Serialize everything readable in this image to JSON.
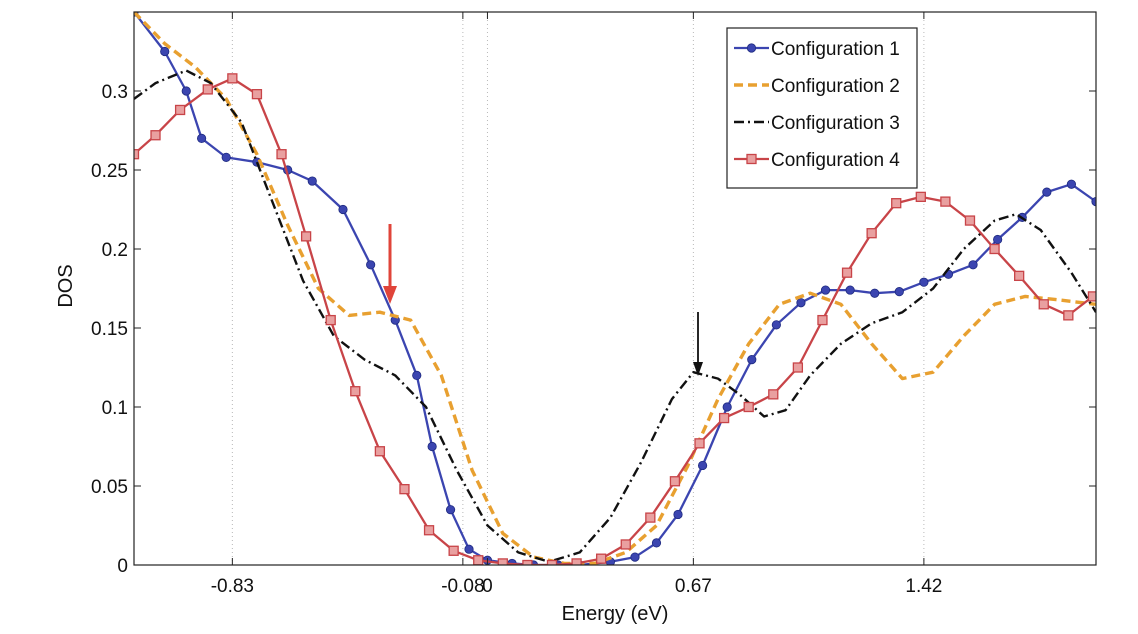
{
  "chart_data": {
    "type": "line",
    "xlabel": "Energy (eV)",
    "ylabel": "DOS",
    "xlim": [
      -1.15,
      1.98
    ],
    "ylim": [
      0,
      0.35
    ],
    "xticks": [
      {
        "value": -0.83,
        "label": "-0.83"
      },
      {
        "value": -0.08,
        "label": "-0.08"
      },
      {
        "value": 0,
        "label": "0"
      },
      {
        "value": 0.67,
        "label": "0.67"
      },
      {
        "value": 1.42,
        "label": "1.42"
      }
    ],
    "yticks": [
      {
        "value": 0,
        "label": "0"
      },
      {
        "value": 0.05,
        "label": "0.05"
      },
      {
        "value": 0.1,
        "label": "0.1"
      },
      {
        "value": 0.15,
        "label": "0.15"
      },
      {
        "value": 0.2,
        "label": "0.2"
      },
      {
        "value": 0.25,
        "label": "0.25"
      },
      {
        "value": 0.3,
        "label": "0.3"
      }
    ],
    "reference_lines_x": [
      -0.83,
      -0.08,
      0,
      0.67,
      1.42
    ],
    "legend_position": "top-right",
    "series": [
      {
        "name": "Configuration 1",
        "color": "#3b45b0",
        "style": "solid-dot",
        "points": [
          [
            -1.15,
            0.35
          ],
          [
            -1.05,
            0.325
          ],
          [
            -0.98,
            0.3
          ],
          [
            -0.93,
            0.27
          ],
          [
            -0.85,
            0.258
          ],
          [
            -0.75,
            0.255
          ],
          [
            -0.65,
            0.25
          ],
          [
            -0.57,
            0.243
          ],
          [
            -0.47,
            0.225
          ],
          [
            -0.38,
            0.19
          ],
          [
            -0.3,
            0.155
          ],
          [
            -0.23,
            0.12
          ],
          [
            -0.18,
            0.075
          ],
          [
            -0.12,
            0.035
          ],
          [
            -0.06,
            0.01
          ],
          [
            0.0,
            0.003
          ],
          [
            0.08,
            0.001
          ],
          [
            0.15,
            0.0
          ],
          [
            0.23,
            0.0
          ],
          [
            0.3,
            0.0
          ],
          [
            0.4,
            0.002
          ],
          [
            0.48,
            0.005
          ],
          [
            0.55,
            0.014
          ],
          [
            0.62,
            0.032
          ],
          [
            0.7,
            0.063
          ],
          [
            0.78,
            0.1
          ],
          [
            0.86,
            0.13
          ],
          [
            0.94,
            0.152
          ],
          [
            1.02,
            0.166
          ],
          [
            1.1,
            0.174
          ],
          [
            1.18,
            0.174
          ],
          [
            1.26,
            0.172
          ],
          [
            1.34,
            0.173
          ],
          [
            1.42,
            0.179
          ],
          [
            1.5,
            0.184
          ],
          [
            1.58,
            0.19
          ],
          [
            1.66,
            0.206
          ],
          [
            1.74,
            0.22
          ],
          [
            1.82,
            0.236
          ],
          [
            1.9,
            0.241
          ],
          [
            1.98,
            0.23
          ]
        ]
      },
      {
        "name": "Configuration 2",
        "color": "#e8a030",
        "style": "dashed",
        "points": [
          [
            -1.15,
            0.35
          ],
          [
            -1.05,
            0.33
          ],
          [
            -0.95,
            0.315
          ],
          [
            -0.85,
            0.295
          ],
          [
            -0.75,
            0.26
          ],
          [
            -0.65,
            0.215
          ],
          [
            -0.55,
            0.175
          ],
          [
            -0.45,
            0.158
          ],
          [
            -0.35,
            0.16
          ],
          [
            -0.25,
            0.155
          ],
          [
            -0.15,
            0.12
          ],
          [
            -0.05,
            0.06
          ],
          [
            0.05,
            0.02
          ],
          [
            0.15,
            0.005
          ],
          [
            0.25,
            0.001
          ],
          [
            0.35,
            0.001
          ],
          [
            0.45,
            0.008
          ],
          [
            0.55,
            0.025
          ],
          [
            0.65,
            0.062
          ],
          [
            0.75,
            0.105
          ],
          [
            0.85,
            0.14
          ],
          [
            0.95,
            0.165
          ],
          [
            1.05,
            0.172
          ],
          [
            1.15,
            0.165
          ],
          [
            1.25,
            0.14
          ],
          [
            1.35,
            0.118
          ],
          [
            1.45,
            0.122
          ],
          [
            1.55,
            0.145
          ],
          [
            1.65,
            0.165
          ],
          [
            1.75,
            0.17
          ],
          [
            1.85,
            0.168
          ],
          [
            1.98,
            0.165
          ]
        ]
      },
      {
        "name": "Configuration 3",
        "color": "#111111",
        "style": "dashdot",
        "points": [
          [
            -1.15,
            0.295
          ],
          [
            -1.08,
            0.305
          ],
          [
            -0.98,
            0.313
          ],
          [
            -0.9,
            0.305
          ],
          [
            -0.8,
            0.28
          ],
          [
            -0.7,
            0.23
          ],
          [
            -0.6,
            0.18
          ],
          [
            -0.5,
            0.145
          ],
          [
            -0.4,
            0.13
          ],
          [
            -0.3,
            0.12
          ],
          [
            -0.2,
            0.1
          ],
          [
            -0.1,
            0.06
          ],
          [
            0.0,
            0.025
          ],
          [
            0.1,
            0.008
          ],
          [
            0.2,
            0.002
          ],
          [
            0.3,
            0.008
          ],
          [
            0.4,
            0.03
          ],
          [
            0.5,
            0.065
          ],
          [
            0.6,
            0.105
          ],
          [
            0.67,
            0.122
          ],
          [
            0.75,
            0.118
          ],
          [
            0.82,
            0.108
          ],
          [
            0.9,
            0.094
          ],
          [
            0.97,
            0.098
          ],
          [
            1.05,
            0.12
          ],
          [
            1.15,
            0.14
          ],
          [
            1.25,
            0.153
          ],
          [
            1.35,
            0.16
          ],
          [
            1.45,
            0.175
          ],
          [
            1.55,
            0.2
          ],
          [
            1.65,
            0.218
          ],
          [
            1.72,
            0.222
          ],
          [
            1.8,
            0.212
          ],
          [
            1.9,
            0.185
          ],
          [
            1.98,
            0.16
          ]
        ]
      },
      {
        "name": "Configuration 4",
        "color": "#c84448",
        "style": "solid-square",
        "points": [
          [
            -1.15,
            0.26
          ],
          [
            -1.08,
            0.272
          ],
          [
            -1.0,
            0.288
          ],
          [
            -0.91,
            0.301
          ],
          [
            -0.83,
            0.308
          ],
          [
            -0.75,
            0.298
          ],
          [
            -0.67,
            0.26
          ],
          [
            -0.59,
            0.208
          ],
          [
            -0.51,
            0.155
          ],
          [
            -0.43,
            0.11
          ],
          [
            -0.35,
            0.072
          ],
          [
            -0.27,
            0.048
          ],
          [
            -0.19,
            0.022
          ],
          [
            -0.11,
            0.009
          ],
          [
            -0.03,
            0.003
          ],
          [
            0.05,
            0.001
          ],
          [
            0.13,
            0.0
          ],
          [
            0.21,
            0.0
          ],
          [
            0.29,
            0.001
          ],
          [
            0.37,
            0.004
          ],
          [
            0.45,
            0.013
          ],
          [
            0.53,
            0.03
          ],
          [
            0.61,
            0.053
          ],
          [
            0.69,
            0.077
          ],
          [
            0.77,
            0.093
          ],
          [
            0.85,
            0.1
          ],
          [
            0.93,
            0.108
          ],
          [
            1.01,
            0.125
          ],
          [
            1.09,
            0.155
          ],
          [
            1.17,
            0.185
          ],
          [
            1.25,
            0.21
          ],
          [
            1.33,
            0.229
          ],
          [
            1.41,
            0.233
          ],
          [
            1.49,
            0.23
          ],
          [
            1.57,
            0.218
          ],
          [
            1.65,
            0.2
          ],
          [
            1.73,
            0.183
          ],
          [
            1.81,
            0.165
          ],
          [
            1.89,
            0.158
          ],
          [
            1.97,
            0.17
          ]
        ]
      }
    ]
  }
}
